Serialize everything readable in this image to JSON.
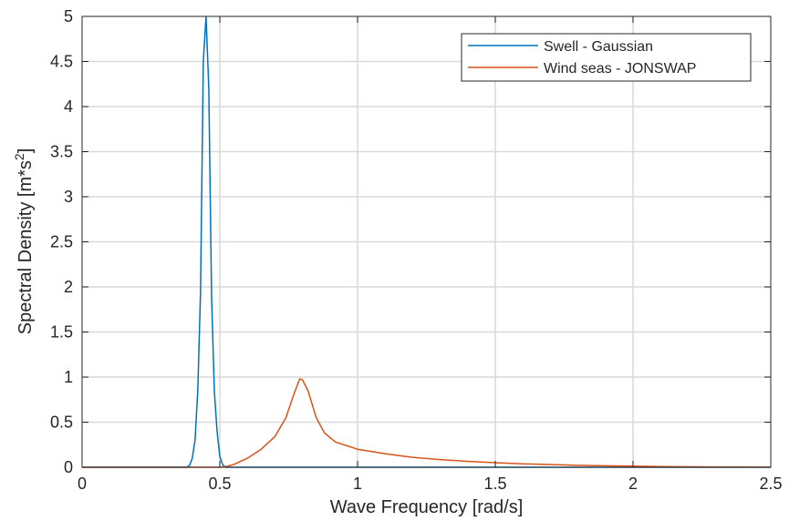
{
  "chart_data": {
    "type": "line",
    "title": "",
    "xlabel": "Wave Frequency [rad/s]",
    "ylabel_main": "Spectral Density [m*s",
    "ylabel_sup": "2",
    "ylabel_end": "]",
    "xlim": [
      0,
      2.5
    ],
    "ylim": [
      0,
      5
    ],
    "grid": true,
    "legend_position": "top-right",
    "x_ticks": [
      0,
      0.5,
      1,
      1.5,
      2,
      2.5
    ],
    "x_tick_labels": [
      "0",
      "0.5",
      "1",
      "1.5",
      "2",
      "2.5"
    ],
    "y_ticks": [
      0,
      0.5,
      1,
      1.5,
      2,
      2.5,
      3,
      3.5,
      4,
      4.5,
      5
    ],
    "y_tick_labels": [
      "0",
      "0.5",
      "1",
      "1.5",
      "2",
      "2.5",
      "3",
      "3.5",
      "4",
      "4.5",
      "5"
    ],
    "series": [
      {
        "name": "Swell - Gaussian",
        "color": "#0072BD",
        "points": [
          [
            0,
            0
          ],
          [
            0.38,
            0
          ],
          [
            0.39,
            0.02
          ],
          [
            0.4,
            0.1
          ],
          [
            0.41,
            0.3
          ],
          [
            0.42,
            0.85
          ],
          [
            0.43,
            1.95
          ],
          [
            0.44,
            4.5
          ],
          [
            0.45,
            5.0
          ],
          [
            0.46,
            4.2
          ],
          [
            0.47,
            1.9
          ],
          [
            0.48,
            0.85
          ],
          [
            0.49,
            0.4
          ],
          [
            0.5,
            0.12
          ],
          [
            0.51,
            0.03
          ],
          [
            0.52,
            0
          ],
          [
            2.5,
            0
          ]
        ]
      },
      {
        "name": "Wind seas - JONSWAP",
        "color": "#D95319",
        "points": [
          [
            0,
            0
          ],
          [
            0.5,
            0
          ],
          [
            0.52,
            0.005
          ],
          [
            0.55,
            0.03
          ],
          [
            0.6,
            0.1
          ],
          [
            0.65,
            0.2
          ],
          [
            0.7,
            0.34
          ],
          [
            0.74,
            0.55
          ],
          [
            0.77,
            0.82
          ],
          [
            0.79,
            0.98
          ],
          [
            0.8,
            0.97
          ],
          [
            0.82,
            0.85
          ],
          [
            0.85,
            0.55
          ],
          [
            0.88,
            0.38
          ],
          [
            0.92,
            0.28
          ],
          [
            1.0,
            0.2
          ],
          [
            1.1,
            0.15
          ],
          [
            1.2,
            0.11
          ],
          [
            1.3,
            0.085
          ],
          [
            1.4,
            0.065
          ],
          [
            1.5,
            0.05
          ],
          [
            1.6,
            0.038
          ],
          [
            1.7,
            0.03
          ],
          [
            1.8,
            0.022
          ],
          [
            1.9,
            0.017
          ],
          [
            2.0,
            0.012
          ],
          [
            2.1,
            0.008
          ],
          [
            2.2,
            0.005
          ],
          [
            2.3,
            0.003
          ],
          [
            2.4,
            0.002
          ],
          [
            2.5,
            0.001
          ]
        ]
      }
    ]
  }
}
